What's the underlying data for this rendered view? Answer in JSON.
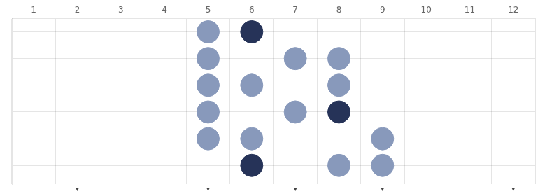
{
  "chart_data": {
    "type": "scatter",
    "x": [
      5,
      6,
      5,
      7,
      8,
      5,
      6,
      8,
      5,
      7,
      8,
      5,
      6,
      9,
      6,
      8,
      9
    ],
    "values": [
      1,
      1,
      2,
      2,
      2,
      3,
      3,
      3,
      4,
      4,
      4,
      5,
      5,
      5,
      6,
      6,
      6
    ],
    "colors": [
      "#8899bb",
      "#263358",
      "#8899bb",
      "#8899bb",
      "#8899bb",
      "#8899bb",
      "#8899bb",
      "#8899bb",
      "#8899bb",
      "#8899bb",
      "#263358",
      "#8899bb",
      "#8899bb",
      "#8899bb",
      "#263358",
      "#8899bb",
      "#8899bb"
    ],
    "xlim": [
      0.5,
      12.5
    ],
    "xticks": [
      1,
      2,
      3,
      4,
      5,
      6,
      7,
      8,
      9,
      10,
      11,
      12
    ],
    "ylim": [
      6.7,
      0.5
    ],
    "yticks": [
      1,
      2,
      3,
      4,
      5,
      6
    ],
    "grid": true,
    "tick_labels": "x",
    "annotations": [
      {
        "text": "▾",
        "x": 2
      },
      {
        "text": "▾",
        "x": 5
      },
      {
        "text": "▾",
        "x": 7
      },
      {
        "text": "▾",
        "x": 9
      },
      {
        "text": "▾",
        "x": 12
      }
    ]
  }
}
